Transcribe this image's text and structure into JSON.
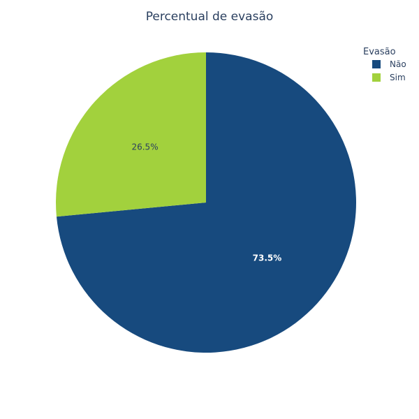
{
  "chart_data": {
    "type": "pie",
    "title": "Percentual de evasão",
    "legend_title": "Evasão",
    "legend_position": "top-right",
    "categories": [
      "Não",
      "Sim"
    ],
    "values": [
      73.5,
      26.5
    ],
    "labels": [
      "73.5%",
      "26.5%"
    ],
    "colors": [
      "#174a7e",
      "#a2d13d"
    ],
    "label_colors": [
      "#ffffff",
      "#2a3f5f"
    ],
    "direction": "clockwise",
    "start_angle": "12 o'clock"
  }
}
